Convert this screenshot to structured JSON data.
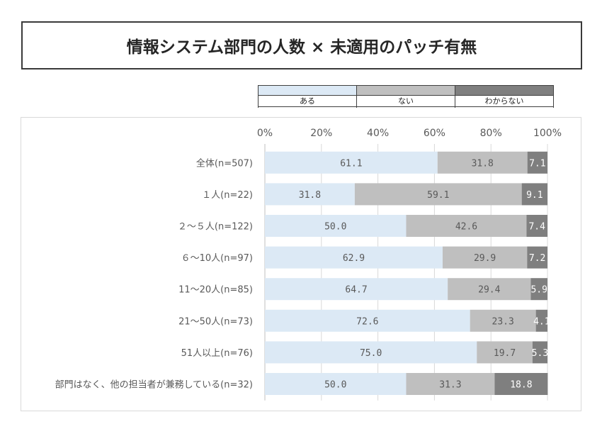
{
  "title": "情報システム部門の人数 × 未適用のパッチ有無",
  "legend": [
    {
      "label": "ある",
      "color": "#dce9f5"
    },
    {
      "label": "ない",
      "color": "#bfbfbf"
    },
    {
      "label": "わからない",
      "color": "#7f7f7f"
    }
  ],
  "chart_data": {
    "type": "bar",
    "orientation": "horizontal",
    "stacked": "100%",
    "xlim": [
      0,
      100
    ],
    "x_ticks": [
      "0%",
      "20%",
      "40%",
      "60%",
      "80%",
      "100%"
    ],
    "categories": [
      "全体(n=507)",
      "１人(n=22)",
      "２～５人(n=122)",
      "６～10人(n=97)",
      "11～20人(n=85)",
      "21～50人(n=73)",
      "51人以上(n=76)",
      "部門はなく、他の担当者が兼務している(n=32)"
    ],
    "series": [
      {
        "name": "ある",
        "values": [
          61.1,
          31.8,
          50.0,
          62.9,
          64.7,
          72.6,
          75.0,
          50.0
        ]
      },
      {
        "name": "ない",
        "values": [
          31.8,
          59.1,
          42.6,
          29.9,
          29.4,
          23.3,
          19.7,
          31.3
        ]
      },
      {
        "name": "わからない",
        "values": [
          7.1,
          9.1,
          7.4,
          7.2,
          5.9,
          4.1,
          5.3,
          18.8
        ]
      }
    ],
    "value_labels": [
      [
        "61.1",
        "31.8",
        "7.1"
      ],
      [
        "31.8",
        "59.1",
        "9.1"
      ],
      [
        "50.0",
        "42.6",
        "7.4"
      ],
      [
        "62.9",
        "29.9",
        "7.2"
      ],
      [
        "64.7",
        "29.4",
        "5.9"
      ],
      [
        "72.6",
        "23.3",
        "4.1"
      ],
      [
        "75.0",
        "19.7",
        "5.3"
      ],
      [
        "50.0",
        "31.3",
        "18.8"
      ]
    ],
    "grid": true,
    "legend_position": "top"
  }
}
